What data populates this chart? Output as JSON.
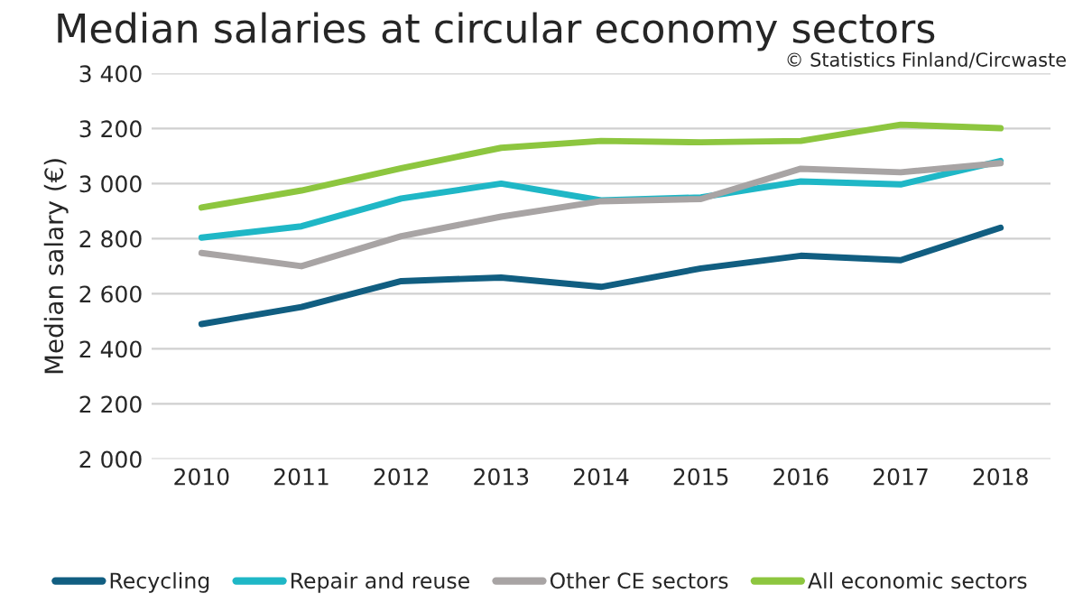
{
  "chart_data": {
    "type": "line",
    "title": "Median salaries at circular economy sectors",
    "ylabel": "Median salary (€)",
    "annotations": [
      "© Statistics Finland/Circwaste"
    ],
    "categories": [
      "2010",
      "2011",
      "2012",
      "2013",
      "2014",
      "2015",
      "2016",
      "2017",
      "2018"
    ],
    "series": [
      {
        "name": "Recycling",
        "color": "#115e81",
        "values": [
          2490,
          2552,
          2646,
          2659,
          2625,
          2692,
          2738,
          2722,
          2840
        ]
      },
      {
        "name": "Repair and reuse",
        "color": "#1fb7c6",
        "values": [
          2804,
          2845,
          2946,
          3000,
          2939,
          2950,
          3008,
          2997,
          3082
        ]
      },
      {
        "name": "Other CE sectors",
        "color": "#a8a4a4",
        "values": [
          2748,
          2700,
          2809,
          2880,
          2936,
          2944,
          3054,
          3041,
          3074
        ]
      },
      {
        "name": "All economic sectors",
        "color": "#8dc63f",
        "values": [
          2913,
          2975,
          3056,
          3130,
          3155,
          3150,
          3155,
          3214,
          3201
        ]
      }
    ],
    "ylim": [
      2000,
      3400
    ],
    "yticks": [
      {
        "value": 2000,
        "label": "2 000"
      },
      {
        "value": 2200,
        "label": "2 200"
      },
      {
        "value": 2400,
        "label": "2 400"
      },
      {
        "value": 2600,
        "label": "2 600"
      },
      {
        "value": 2800,
        "label": "2 800"
      },
      {
        "value": 3000,
        "label": "3 000"
      },
      {
        "value": 3200,
        "label": "3 200"
      },
      {
        "value": 3400,
        "label": "3 400"
      }
    ],
    "grid": "y",
    "legend": "bottom",
    "marker": "none",
    "line_style": "solid"
  }
}
